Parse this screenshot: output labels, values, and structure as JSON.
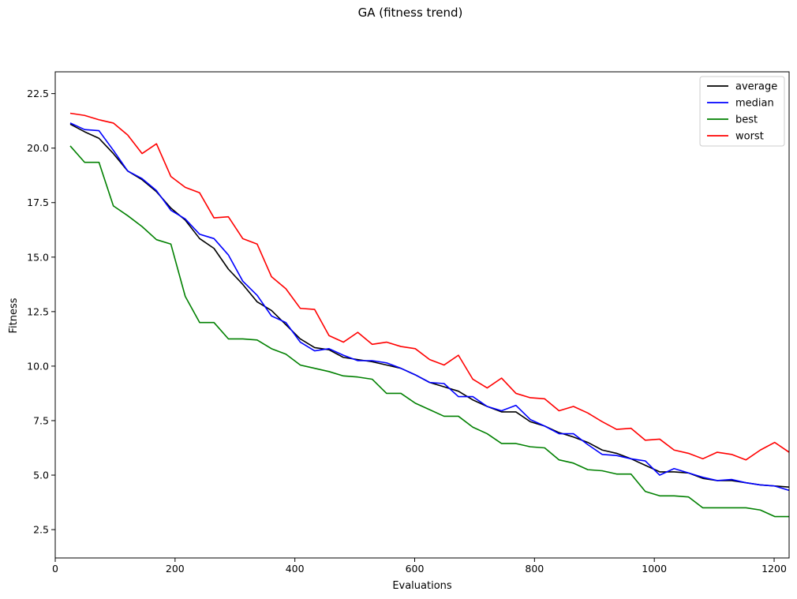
{
  "chart_data": {
    "type": "line",
    "title": "GA (fitness trend)",
    "xlabel": "Evaluations",
    "ylabel": "Fitness",
    "xlim": [
      0,
      1225
    ],
    "ylim": [
      1.2,
      23.5
    ],
    "xticks": [
      0,
      200,
      400,
      600,
      800,
      1000,
      1200
    ],
    "yticks": [
      2.5,
      5.0,
      7.5,
      10.0,
      12.5,
      15.0,
      17.5,
      20.0,
      22.5
    ],
    "xtick_labels": [
      "0",
      "200",
      "400",
      "600",
      "800",
      "1000",
      "1200"
    ],
    "ytick_labels": [
      "2.5",
      "5.0",
      "7.5",
      "10.0",
      "12.5",
      "15.0",
      "17.5",
      "20.0",
      "22.5"
    ],
    "grid": false,
    "legend_position": "top-right",
    "x": [
      25,
      49,
      73,
      97,
      121,
      145,
      169,
      193,
      217,
      241,
      265,
      289,
      313,
      337,
      361,
      385,
      409,
      433,
      457,
      481,
      505,
      529,
      553,
      577,
      601,
      625,
      649,
      673,
      697,
      721,
      745,
      769,
      793,
      817,
      841,
      865,
      889,
      913,
      937,
      961,
      985,
      1009,
      1033,
      1057,
      1081,
      1105,
      1129,
      1153,
      1177,
      1201,
      1225
    ],
    "series": [
      {
        "name": "average",
        "color": "#000000",
        "values": [
          21.1,
          20.75,
          20.45,
          19.75,
          18.95,
          18.55,
          18.0,
          17.25,
          16.7,
          15.85,
          15.4,
          14.45,
          13.75,
          12.95,
          12.55,
          11.9,
          11.25,
          10.85,
          10.75,
          10.4,
          10.3,
          10.2,
          10.05,
          9.9,
          9.6,
          9.25,
          9.05,
          8.85,
          8.45,
          8.15,
          7.9,
          7.9,
          7.45,
          7.25,
          6.95,
          6.75,
          6.5,
          6.15,
          6.0,
          5.75,
          5.45,
          5.15,
          5.15,
          5.1,
          4.85,
          4.75,
          4.75,
          4.65,
          4.55,
          4.5,
          4.45
        ]
      },
      {
        "name": "median",
        "color": "#0000ff",
        "values": [
          21.15,
          20.85,
          20.8,
          19.9,
          18.95,
          18.6,
          18.05,
          17.15,
          16.75,
          16.05,
          15.85,
          15.1,
          13.9,
          13.25,
          12.3,
          12.0,
          11.1,
          10.7,
          10.8,
          10.5,
          10.25,
          10.25,
          10.15,
          9.9,
          9.6,
          9.25,
          9.2,
          8.6,
          8.6,
          8.15,
          7.95,
          8.2,
          7.55,
          7.25,
          6.9,
          6.9,
          6.4,
          5.95,
          5.9,
          5.75,
          5.65,
          5.0,
          5.3,
          5.1,
          4.9,
          4.75,
          4.8,
          4.65,
          4.55,
          4.5,
          4.3
        ]
      },
      {
        "name": "best",
        "color": "#008000",
        "values": [
          20.1,
          19.35,
          19.35,
          17.35,
          16.9,
          16.4,
          15.8,
          15.6,
          13.2,
          12.0,
          12.0,
          11.25,
          11.25,
          11.2,
          10.8,
          10.55,
          10.05,
          9.9,
          9.75,
          9.55,
          9.5,
          9.4,
          8.75,
          8.75,
          8.3,
          8.0,
          7.7,
          7.7,
          7.2,
          6.9,
          6.45,
          6.45,
          6.3,
          6.25,
          5.7,
          5.55,
          5.25,
          5.2,
          5.05,
          5.05,
          4.25,
          4.05,
          4.05,
          4.0,
          3.5,
          3.5,
          3.5,
          3.5,
          3.4,
          3.1,
          3.1
        ]
      },
      {
        "name": "worst",
        "color": "#ff0000",
        "values": [
          21.6,
          21.5,
          21.3,
          21.15,
          20.6,
          19.75,
          20.2,
          18.7,
          18.2,
          17.95,
          16.8,
          16.85,
          15.85,
          15.6,
          14.1,
          13.55,
          12.65,
          12.6,
          11.4,
          11.1,
          11.55,
          11.0,
          11.1,
          10.9,
          10.8,
          10.3,
          10.05,
          10.5,
          9.4,
          9.0,
          9.45,
          8.75,
          8.55,
          8.5,
          7.95,
          8.15,
          7.85,
          7.45,
          7.1,
          7.15,
          6.6,
          6.65,
          6.15,
          6.0,
          5.75,
          6.05,
          5.95,
          5.7,
          6.15,
          6.5,
          6.05
        ]
      }
    ]
  }
}
